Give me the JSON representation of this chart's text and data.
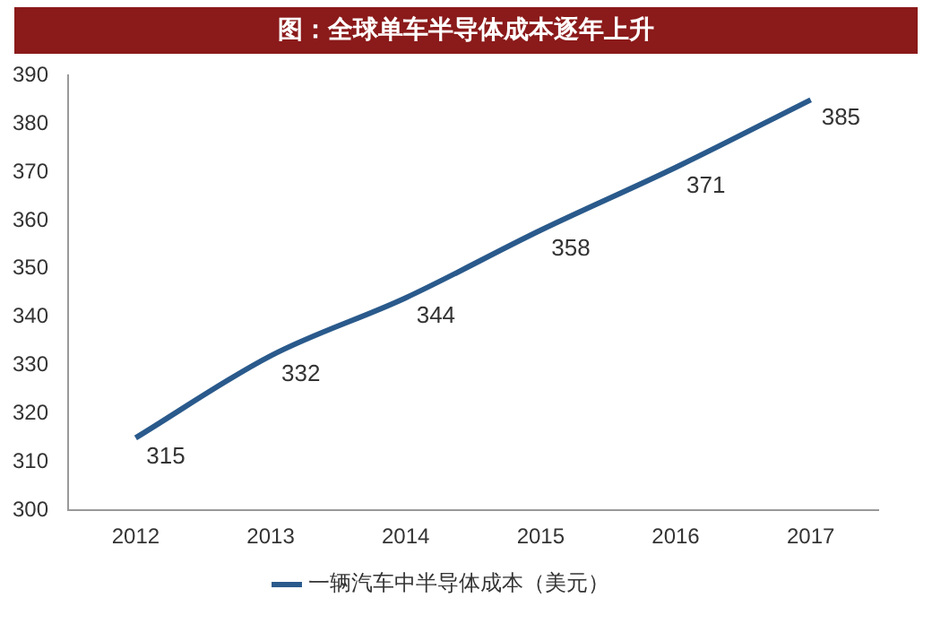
{
  "chart_data": {
    "type": "line",
    "title": "图：全球单车半导体成本逐年上升",
    "categories": [
      "2012",
      "2013",
      "2014",
      "2015",
      "2016",
      "2017"
    ],
    "series": [
      {
        "name": "一辆汽车中半导体成本（美元）",
        "color": "#2a5a8c",
        "values": [
          315,
          332,
          344,
          358,
          371,
          385
        ]
      }
    ],
    "ylim": [
      300,
      390
    ],
    "yticks": [
      300,
      310,
      320,
      330,
      340,
      350,
      360,
      370,
      380,
      390
    ],
    "grid": false,
    "legend": "bottom",
    "marker": "none",
    "line_style": "solid",
    "data_labels": true
  }
}
